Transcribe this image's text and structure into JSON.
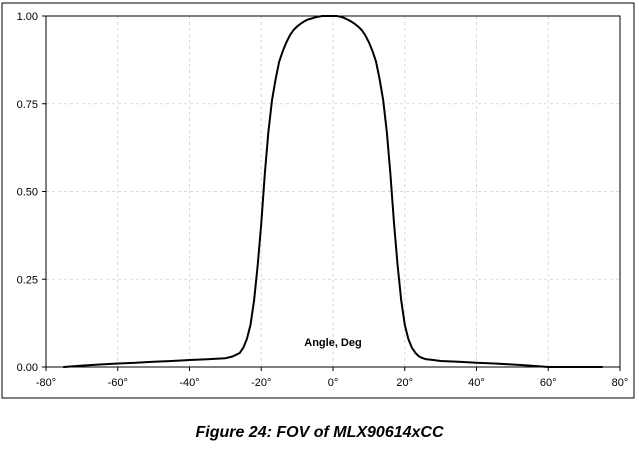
{
  "chart_data": {
    "type": "line",
    "title": "",
    "xlabel": "",
    "ylabel": "",
    "xlim": [
      -80,
      80
    ],
    "ylim": [
      0,
      1
    ],
    "x_ticks": [
      -80,
      -60,
      -40,
      -20,
      0,
      20,
      40,
      60,
      80
    ],
    "x_tick_labels": [
      "-80°",
      "-60°",
      "-40°",
      "-20°",
      "0°",
      "20°",
      "40°",
      "60°",
      "80°"
    ],
    "y_ticks": [
      0,
      0.25,
      0.5,
      0.75,
      1
    ],
    "y_tick_labels": [
      "0.00",
      "0.25",
      "0.50",
      "0.75",
      "1.00"
    ],
    "grid": true,
    "legend": "none",
    "annotation": "Angle, Deg",
    "series": [
      {
        "color": "#000000",
        "x": [
          -75,
          -70,
          -65,
          -60,
          -55,
          -50,
          -45,
          -40,
          -35,
          -30,
          -28,
          -26,
          -25,
          -24,
          -23,
          -22,
          -21,
          -20,
          -19,
          -18,
          -17,
          -16,
          -15,
          -14,
          -13,
          -12,
          -11,
          -10,
          -9,
          -8,
          -7,
          -6,
          -5,
          -4,
          -3,
          -2,
          -1,
          0,
          1,
          2,
          3,
          4,
          5,
          6,
          7,
          8,
          9,
          10,
          11,
          12,
          13,
          14,
          15,
          16,
          17,
          18,
          19,
          20,
          21,
          22,
          23,
          24,
          25,
          26,
          28,
          30,
          35,
          40,
          45,
          50,
          55,
          60,
          65,
          70,
          75
        ],
        "y": [
          0.0,
          0.004,
          0.007,
          0.01,
          0.012,
          0.015,
          0.017,
          0.02,
          0.022,
          0.025,
          0.03,
          0.04,
          0.055,
          0.08,
          0.12,
          0.19,
          0.29,
          0.41,
          0.55,
          0.67,
          0.76,
          0.82,
          0.87,
          0.9,
          0.925,
          0.945,
          0.96,
          0.97,
          0.978,
          0.985,
          0.99,
          0.993,
          0.996,
          0.998,
          1.0,
          1.0,
          1.0,
          1.0,
          1.0,
          0.998,
          0.995,
          0.99,
          0.985,
          0.978,
          0.97,
          0.96,
          0.945,
          0.925,
          0.9,
          0.87,
          0.82,
          0.76,
          0.67,
          0.55,
          0.41,
          0.29,
          0.19,
          0.12,
          0.08,
          0.055,
          0.04,
          0.03,
          0.025,
          0.022,
          0.02,
          0.017,
          0.015,
          0.012,
          0.01,
          0.007,
          0.004,
          0.0,
          0.0,
          0.0,
          0.0
        ]
      }
    ]
  },
  "caption": "Figure 24: FOV of MLX90614xCC"
}
